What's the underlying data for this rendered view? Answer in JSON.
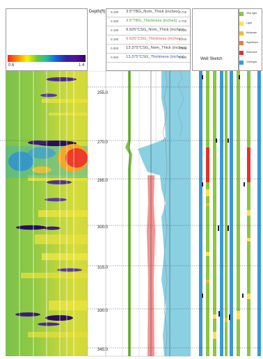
{
  "colorbar": {
    "min_label": "0.6",
    "max_label": "1.4"
  },
  "depth_header": "Depth(ft)",
  "curves": [
    {
      "lo": "0.180",
      "name": "3.5\"TBG_Nom_Thick (inches)",
      "hi": "0.700",
      "color": "#444444"
    },
    {
      "lo": "0.180",
      "name": "3.5\"TBG_Thickness (inches)",
      "hi": "0.700",
      "color": "#3aa33a"
    },
    {
      "lo": "0.180",
      "name": "9.625\"CSG_Nom_Thick (inches)",
      "hi": "0.700",
      "color": "#444444"
    },
    {
      "lo": "0.180",
      "name": "9.625\"CSG_Thickness (inches)",
      "hi": "0.700",
      "color": "#e05050"
    },
    {
      "lo": "0.000",
      "name": "13.375\"CSG_Nom_Thick (inches)",
      "hi": "0.900",
      "color": "#444444"
    },
    {
      "lo": "0.000",
      "name": "13.375\"CSG_Thickness (inches)",
      "hi": "0.900",
      "color": "#3355aa"
    }
  ],
  "well_sketch_label": "Well Sketch",
  "legend": [
    {
      "label": "Very light",
      "color": "#8dc63f"
    },
    {
      "label": "Light",
      "color": "#ffe14d"
    },
    {
      "label": "Moderate",
      "color": "#f7b733"
    },
    {
      "label": "Significant",
      "color": "#f07b3f"
    },
    {
      "label": "Extensive",
      "color": "#e8302a"
    },
    {
      "label": "Undergra",
      "color": "#3a9ad9"
    }
  ],
  "depth_ticks": [
    "255.0",
    "270.0",
    "285.0",
    "300.0",
    "315.0",
    "330.0",
    "345.0"
  ]
}
